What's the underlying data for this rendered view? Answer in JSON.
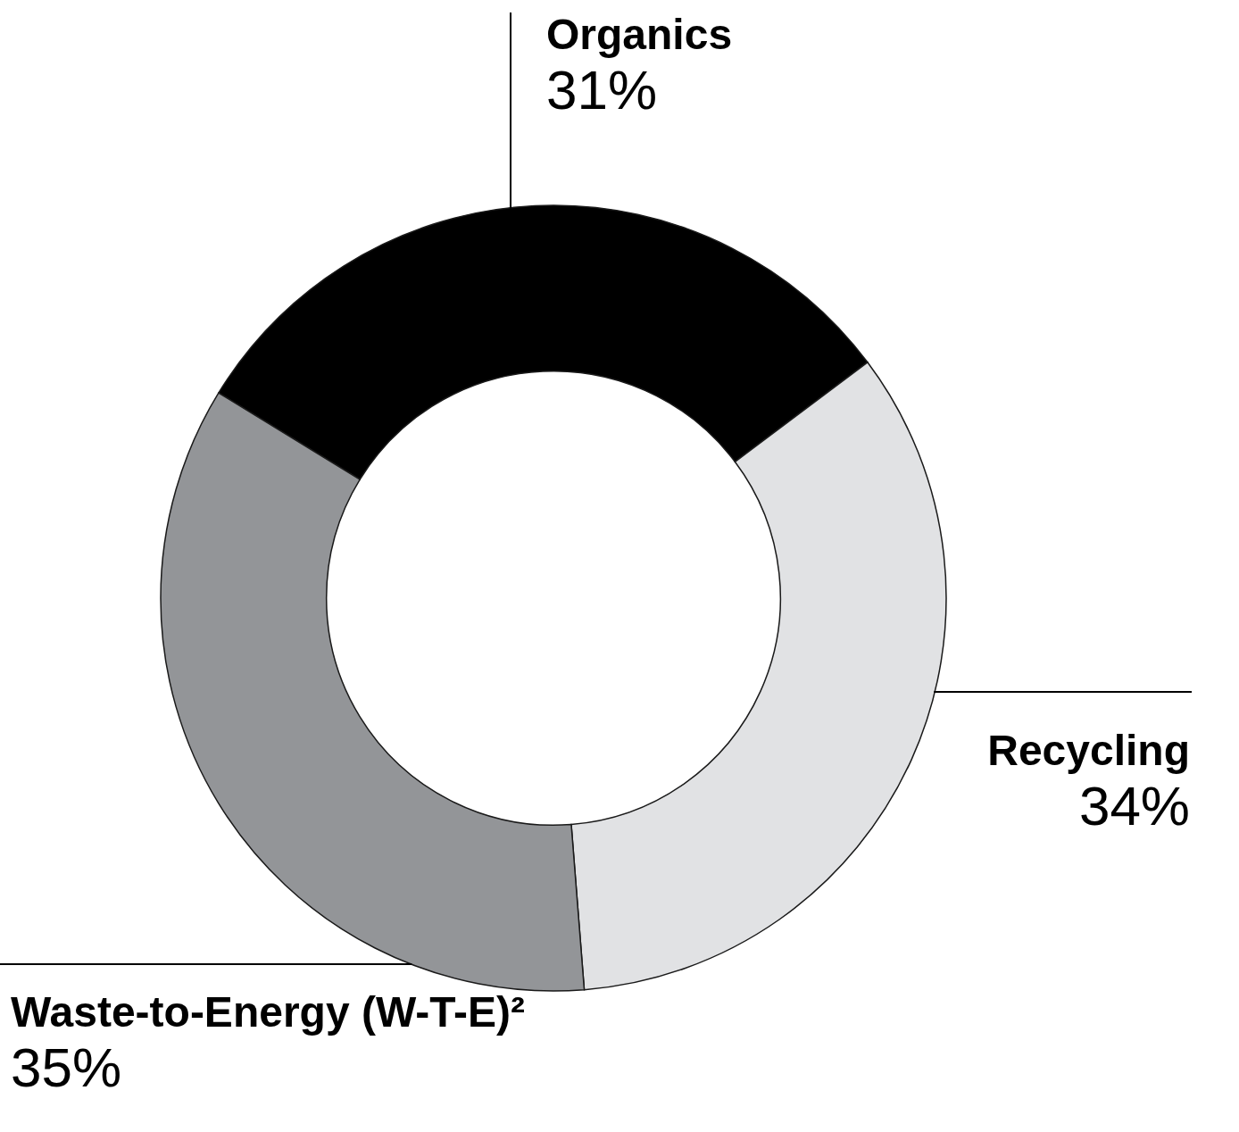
{
  "chart_data": {
    "type": "donut",
    "categories": [
      "Organics",
      "Recycling",
      "Waste-to-Energy (W-T-E)²"
    ],
    "values": [
      31,
      34,
      35
    ],
    "colors": [
      "#000000",
      "#e1e2e4",
      "#939598"
    ],
    "value_labels": [
      "31%",
      "34%",
      "35%"
    ]
  }
}
